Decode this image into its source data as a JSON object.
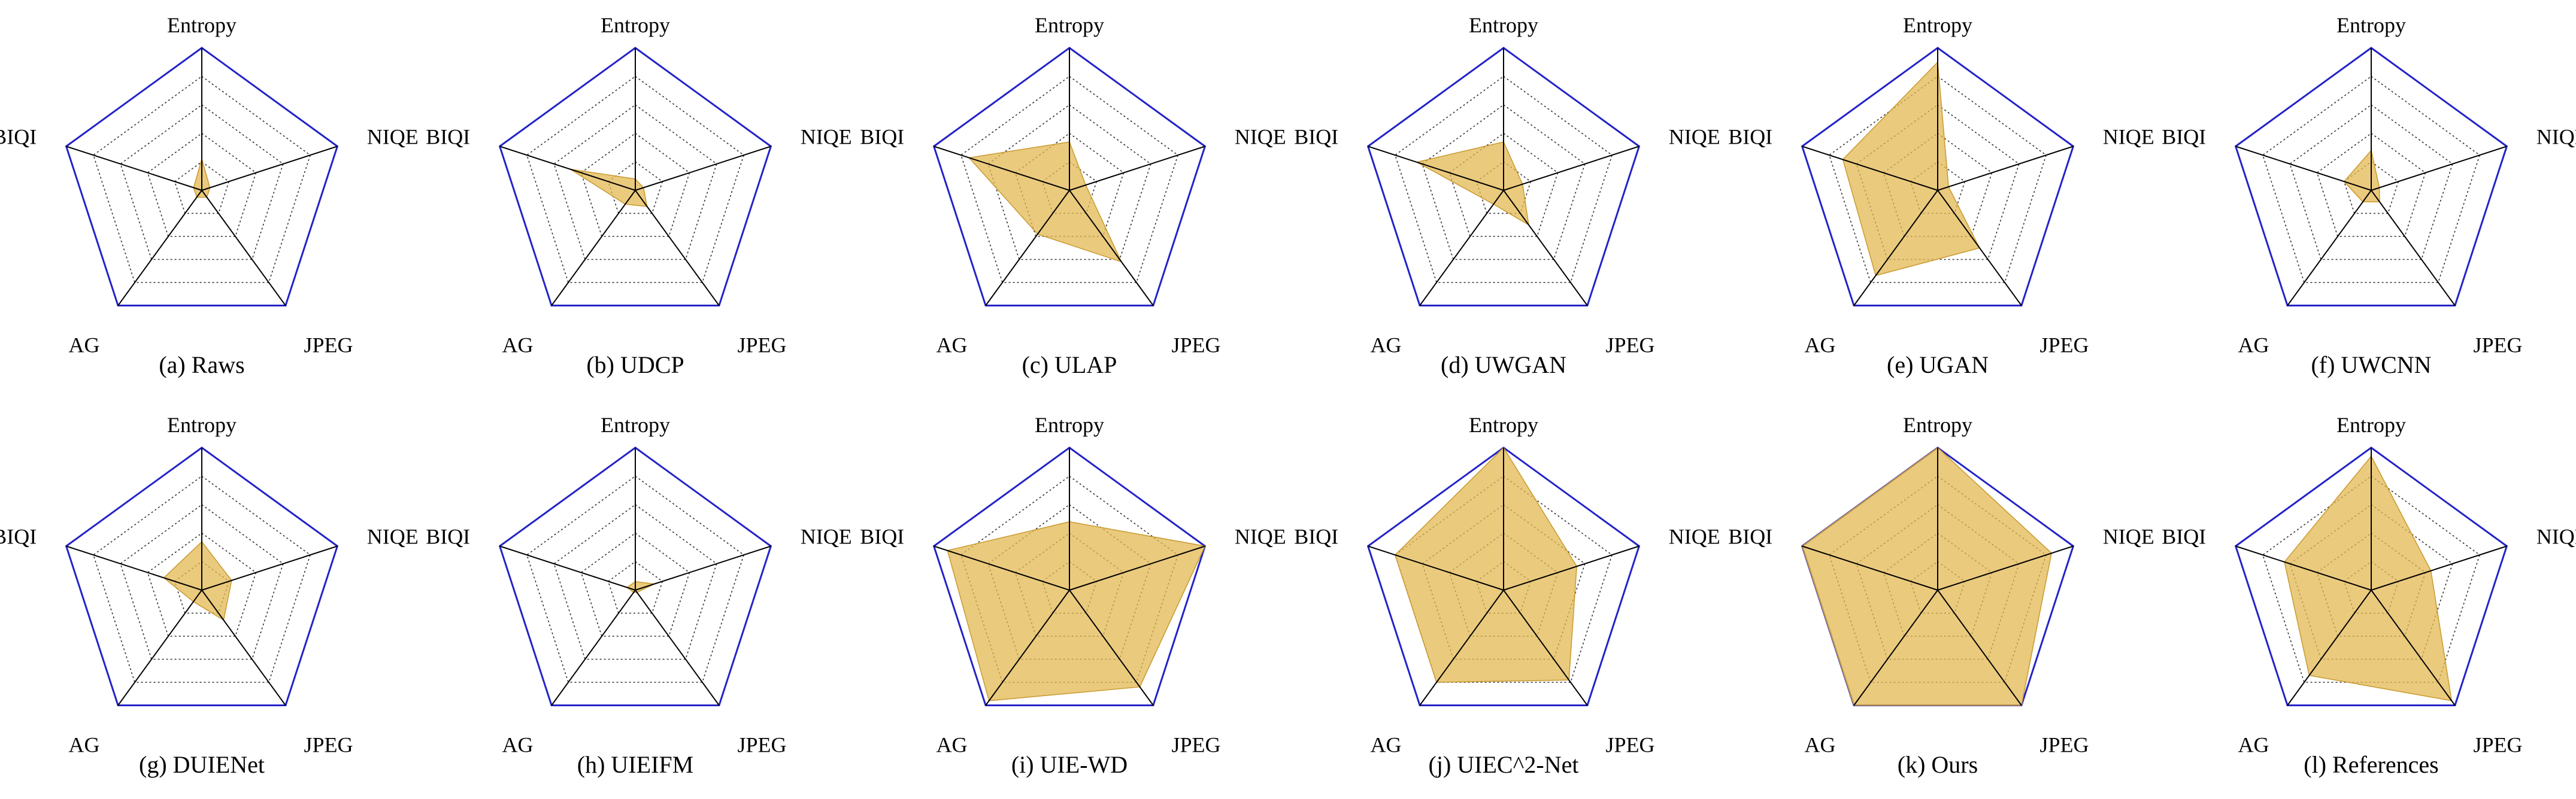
{
  "colors": {
    "outline": "#2323c8",
    "grid": "#333333",
    "spoke": "#000000",
    "fill": "#e3b851",
    "fill_stroke": "#c99a2e"
  },
  "chart_data": {
    "type": "radar",
    "axes": [
      "Entropy",
      "NIQE",
      "JPEG",
      "AG",
      "BIQI"
    ],
    "range": [
      0,
      1
    ],
    "rings": 5,
    "charts": [
      {
        "caption": "(a) Raws",
        "values": [
          0.22,
          0.06,
          0.06,
          0.06,
          0.06
        ]
      },
      {
        "caption": "(b) UDCP",
        "values": [
          0.08,
          0.06,
          0.14,
          0.12,
          0.48
        ]
      },
      {
        "caption": "(c) ULAP",
        "values": [
          0.34,
          0.12,
          0.62,
          0.38,
          0.74
        ]
      },
      {
        "caption": "(d) UWGAN",
        "values": [
          0.34,
          0.14,
          0.3,
          0.12,
          0.64
        ]
      },
      {
        "caption": "(e) UGAN",
        "values": [
          0.9,
          0.08,
          0.5,
          0.74,
          0.7
        ]
      },
      {
        "caption": "(f) UWCNN",
        "values": [
          0.28,
          0.06,
          0.1,
          0.1,
          0.2
        ]
      },
      {
        "caption": "(g) DUIENet",
        "values": [
          0.34,
          0.22,
          0.26,
          0.1,
          0.28
        ]
      },
      {
        "caption": "(h) UIEIFM",
        "values": [
          0.06,
          0.14,
          0.02,
          0.02,
          0.06
        ]
      },
      {
        "caption": "(i) UIE-WD",
        "values": [
          0.48,
          1.0,
          0.84,
          0.96,
          0.9
        ]
      },
      {
        "caption": "(j) UIEC^2-Net",
        "values": [
          1.0,
          0.54,
          0.78,
          0.8,
          0.8
        ]
      },
      {
        "caption": "(k) Ours",
        "values": [
          1.0,
          0.84,
          1.0,
          1.0,
          1.0
        ]
      },
      {
        "caption": "(l) References",
        "values": [
          0.94,
          0.44,
          0.96,
          0.74,
          0.64
        ]
      }
    ]
  }
}
